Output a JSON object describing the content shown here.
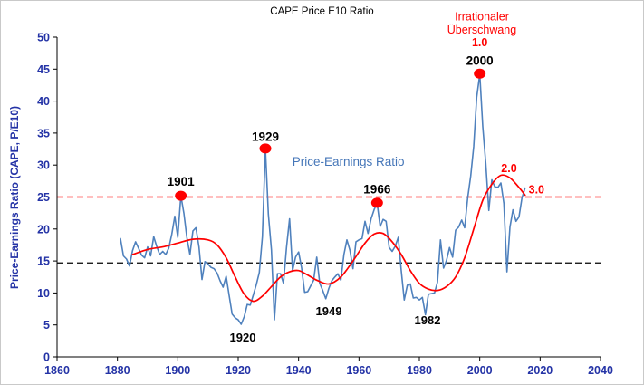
{
  "chart_data": {
    "type": "line",
    "title": "CAPE Price E10 Ratio",
    "xlabel": "",
    "ylabel": "Price-Earnings Ratio (CAPE, P/E10)",
    "xlim": [
      1860,
      2040
    ],
    "ylim": [
      0,
      50
    ],
    "x_ticks": [
      1860,
      1880,
      1900,
      1920,
      1940,
      1960,
      1980,
      2000,
      2020,
      2040
    ],
    "y_ticks": [
      0,
      5,
      10,
      15,
      20,
      25,
      30,
      35,
      40,
      45,
      50
    ],
    "grid": false,
    "legend_position": "none",
    "colors": {
      "pe_line": "#4F81BD",
      "trend_line": "#FF0000",
      "ref_red": "#FF0000",
      "ref_black": "#000000",
      "axis": "#000000",
      "axis_labels": "#2433A6",
      "annotation_black": "#000000",
      "annotation_red": "#FF0000",
      "series_label_blue": "#4576B8"
    },
    "series": [
      {
        "name": "Price-Earnings Ratio",
        "color_key": "pe_line",
        "smooth": false,
        "width": 1.6,
        "x_start": 1881,
        "x_step": 1,
        "values": [
          18.5,
          15.8,
          15.3,
          14.2,
          16.6,
          18.0,
          17.0,
          15.9,
          15.5,
          17.2,
          15.8,
          18.8,
          17.3,
          16.0,
          16.5,
          16.0,
          17.0,
          19.2,
          22.0,
          18.7,
          25.2,
          22.5,
          18.7,
          16.0,
          19.7,
          20.2,
          17.2,
          12.1,
          14.9,
          14.5,
          14.0,
          13.8,
          13.1,
          11.9,
          10.9,
          12.6,
          9.6,
          6.7,
          6.1,
          5.8,
          5.1,
          6.3,
          8.2,
          8.1,
          9.7,
          11.3,
          13.2,
          18.8,
          32.6,
          22.3,
          16.7,
          5.8,
          13.0,
          13.0,
          11.5,
          17.1,
          21.6,
          13.5,
          15.6,
          16.4,
          13.9,
          10.1,
          10.2,
          11.1,
          12.0,
          15.6,
          11.5,
          10.4,
          9.1,
          10.7,
          11.9,
          12.5,
          13.0,
          12.0,
          16.0,
          18.3,
          16.7,
          13.8,
          18.0,
          18.3,
          18.5,
          21.2,
          19.3,
          21.6,
          23.0,
          24.1,
          20.4,
          21.5,
          21.2,
          17.1,
          16.5,
          17.3,
          18.7,
          13.5,
          8.9,
          11.2,
          11.4,
          9.2,
          9.3,
          8.9,
          9.3,
          6.6,
          9.8,
          9.9,
          10.0,
          11.7,
          18.3,
          13.9,
          15.1,
          17.1,
          15.6,
          19.8,
          20.3,
          21.4,
          20.2,
          24.8,
          28.3,
          32.9,
          40.6,
          44.2,
          36.0,
          30.3,
          22.9,
          27.7,
          26.6,
          26.5,
          27.2,
          24.0,
          13.3,
          20.3,
          23.0,
          21.2,
          21.9,
          24.9,
          26.4
        ]
      },
      {
        "name": "Irrational Exuberance Trend",
        "color_key": "trend_line",
        "smooth": true,
        "width": 1.7,
        "x": [
          1885,
          1890,
          1895,
          1900,
          1905,
          1910,
          1913,
          1916,
          1919,
          1922,
          1925,
          1928,
          1931,
          1934,
          1937,
          1940,
          1943,
          1946,
          1950,
          1954,
          1958,
          1962,
          1965,
          1968,
          1971,
          1974,
          1977,
          1980,
          1983,
          1986,
          1989,
          1992,
          1995,
          1998,
          2001,
          2004,
          2007,
          2010,
          2013,
          2015
        ],
        "values": [
          16.0,
          16.8,
          17.2,
          17.8,
          18.4,
          18.3,
          17.5,
          15.5,
          12.5,
          9.8,
          8.7,
          9.5,
          11.0,
          12.5,
          13.3,
          13.5,
          12.8,
          12.0,
          11.4,
          12.5,
          15.0,
          17.8,
          19.2,
          19.3,
          18.0,
          16.0,
          13.5,
          11.5,
          10.6,
          10.4,
          11.0,
          12.5,
          15.5,
          20.0,
          24.5,
          27.0,
          28.4,
          28.0,
          26.5,
          25.3
        ]
      }
    ],
    "reference_lines": [
      {
        "value": 25.0,
        "color_key": "ref_red",
        "dash": "7 4",
        "width": 1.5
      },
      {
        "value": 14.7,
        "color_key": "ref_black",
        "dash": "7 4",
        "width": 1.3
      }
    ],
    "markers": [
      {
        "x": 1901,
        "y": 25.2
      },
      {
        "x": 1929,
        "y": 32.6
      },
      {
        "x": 1966,
        "y": 24.1
      },
      {
        "x": 2000,
        "y": 44.3
      }
    ],
    "annotations": [
      {
        "x": 1901,
        "y": 26.8,
        "text": "1901",
        "color_key": "annotation_black",
        "size": 13.5,
        "weight": 700
      },
      {
        "x": 1929,
        "y": 33.8,
        "text": "1929",
        "color_key": "annotation_black",
        "size": 13.5,
        "weight": 700
      },
      {
        "x": 1966,
        "y": 25.6,
        "text": "1966",
        "color_key": "annotation_black",
        "size": 13.5,
        "weight": 700
      },
      {
        "x": 2000,
        "y": 45.7,
        "text": "2000",
        "color_key": "annotation_black",
        "size": 13.5,
        "weight": 700
      },
      {
        "x": 1921.5,
        "y": 2.4,
        "text": "1920",
        "color_key": "annotation_black",
        "size": 13,
        "weight": 700
      },
      {
        "x": 1950,
        "y": 6.5,
        "text": "1949",
        "color_key": "annotation_black",
        "size": 13,
        "weight": 700
      },
      {
        "x": 1982.7,
        "y": 5.1,
        "text": "1982",
        "color_key": "annotation_black",
        "size": 13,
        "weight": 700
      },
      {
        "x": 1956.5,
        "y": 29.9,
        "text": "Price-Earnings Ratio",
        "color_key": "series_label_blue",
        "size": 13.5,
        "weight": 400
      },
      {
        "x": 2000.7,
        "y": 52.6,
        "text": "Irrationaler",
        "color_key": "annotation_red",
        "size": 12.5,
        "weight": 400
      },
      {
        "x": 2000.7,
        "y": 50.6,
        "text": "Überschwang",
        "color_key": "annotation_red",
        "size": 12.5,
        "weight": 400
      },
      {
        "x": 2000,
        "y": 48.6,
        "text": "1.0",
        "color_key": "annotation_red",
        "size": 12.5,
        "weight": 700
      },
      {
        "x": 2009.7,
        "y": 28.9,
        "text": "2.0",
        "color_key": "annotation_red",
        "size": 12.5,
        "weight": 700
      },
      {
        "x": 2018.8,
        "y": 25.6,
        "text": "3.0",
        "color_key": "annotation_red",
        "size": 12.5,
        "weight": 700
      }
    ]
  }
}
